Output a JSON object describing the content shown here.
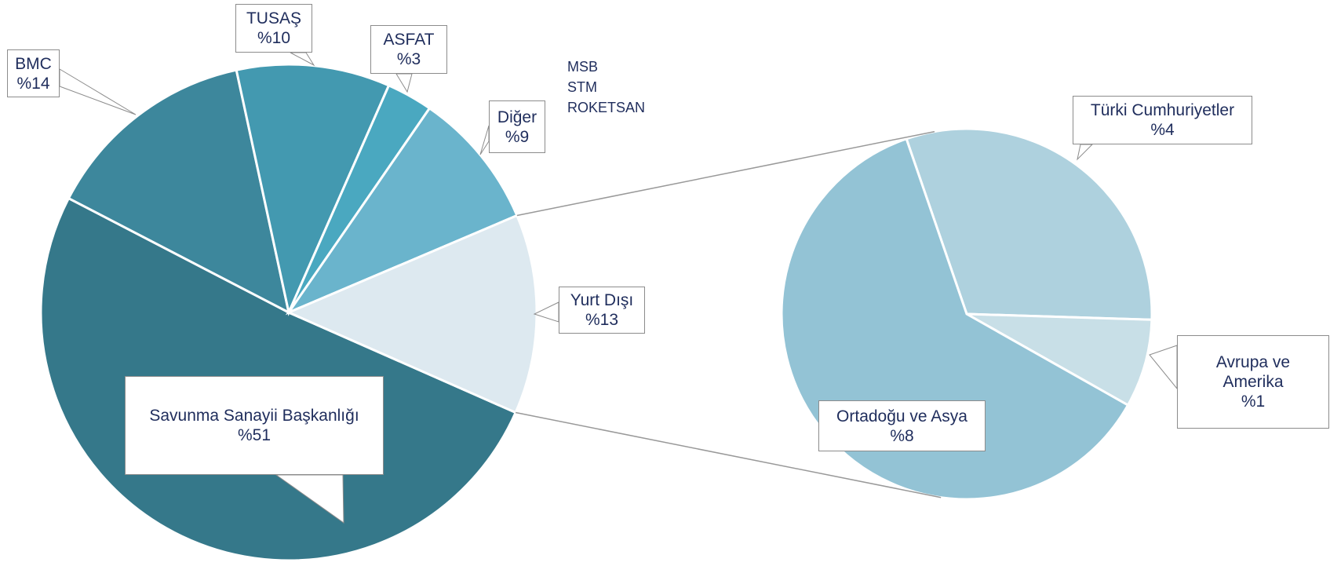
{
  "chart_data": [
    {
      "type": "pie",
      "categories": [
        "Savunma Sanayii Başkanlığı",
        "BMC",
        "TUSAŞ",
        "ASFAT",
        "Diğer",
        "Yurt Dışı"
      ],
      "values": [
        51,
        14,
        10,
        3,
        9,
        13
      ],
      "value_labels": [
        "%51",
        "%14",
        "%10",
        "%3",
        "%9",
        "%13"
      ],
      "colors": [
        "#35788a",
        "#3d879c",
        "#4399b0",
        "#4aa8c0",
        "#6ab4cc",
        "#dde9f0"
      ],
      "annotation": [
        "MSB",
        "STM",
        "ROKETSAN"
      ]
    },
    {
      "type": "pie",
      "categories": [
        "Türki Cumhuriyetler",
        "Avrupa ve Amerika",
        "Ortadoğu ve Asya"
      ],
      "values": [
        4,
        1,
        8
      ],
      "value_labels": [
        "%4",
        "%1",
        "%8"
      ],
      "colors": [
        "#aed1de",
        "#c8dfe7",
        "#93c3d5"
      ]
    }
  ]
}
